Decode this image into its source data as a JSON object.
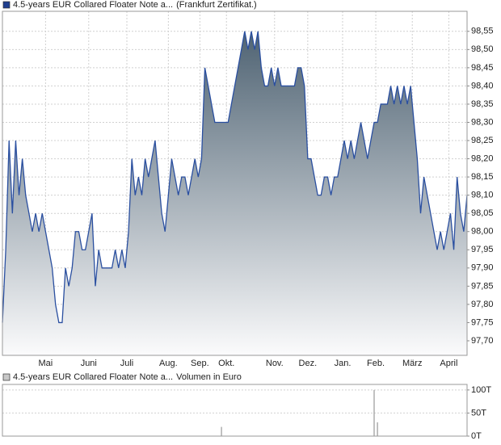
{
  "chart_data": [
    {
      "type": "area",
      "series": [
        {
          "name": "4.5-years EUR Collared Floater Note a...",
          "note": "(Frankfurt Zertifikat.)",
          "color": "#2a4fa0",
          "values": [
            97.75,
            97.95,
            98.25,
            98.05,
            98.25,
            98.1,
            98.2,
            98.1,
            98.05,
            98.0,
            98.05,
            98.0,
            98.05,
            98.0,
            97.95,
            97.9,
            97.8,
            97.75,
            97.75,
            97.9,
            97.85,
            97.9,
            98.0,
            98.0,
            97.95,
            97.95,
            98.0,
            98.05,
            97.85,
            97.95,
            97.9,
            97.9,
            97.9,
            97.9,
            97.95,
            97.9,
            97.95,
            97.9,
            98.0,
            98.2,
            98.1,
            98.15,
            98.1,
            98.2,
            98.15,
            98.2,
            98.25,
            98.15,
            98.05,
            98.0,
            98.1,
            98.2,
            98.15,
            98.1,
            98.15,
            98.15,
            98.1,
            98.15,
            98.2,
            98.15,
            98.2,
            98.45,
            98.4,
            98.35,
            98.3,
            98.3,
            98.3,
            98.3,
            98.3,
            98.35,
            98.4,
            98.45,
            98.5,
            98.55,
            98.5,
            98.55,
            98.5,
            98.55,
            98.45,
            98.4,
            98.4,
            98.45,
            98.4,
            98.45,
            98.4,
            98.4,
            98.4,
            98.4,
            98.4,
            98.45,
            98.45,
            98.4,
            98.2,
            98.2,
            98.15,
            98.1,
            98.1,
            98.15,
            98.15,
            98.1,
            98.15,
            98.15,
            98.2,
            98.25,
            98.2,
            98.25,
            98.2,
            98.25,
            98.3,
            98.25,
            98.2,
            98.25,
            98.3,
            98.3,
            98.35,
            98.35,
            98.35,
            98.4,
            98.35,
            98.4,
            98.35,
            98.4,
            98.35,
            98.4,
            98.3,
            98.2,
            98.05,
            98.15,
            98.1,
            98.05,
            98.0,
            97.95,
            98.0,
            97.95,
            98.0,
            98.05,
            97.95,
            98.15,
            98.05,
            98.0,
            98.1
          ]
        }
      ],
      "xlim": [
        0,
        140
      ],
      "xticks": [
        {
          "value": 13,
          "label": "Mai"
        },
        {
          "value": 26,
          "label": "Juni"
        },
        {
          "value": 37.5,
          "label": "Juli"
        },
        {
          "value": 50,
          "label": "Aug."
        },
        {
          "value": 59.5,
          "label": "Sep."
        },
        {
          "value": 67.5,
          "label": "Okt."
        },
        {
          "value": 82,
          "label": "Nov."
        },
        {
          "value": 92,
          "label": "Dez."
        },
        {
          "value": 102.5,
          "label": "Jan."
        },
        {
          "value": 112.5,
          "label": "Feb."
        },
        {
          "value": 123.5,
          "label": "März"
        },
        {
          "value": 134.5,
          "label": "April"
        }
      ],
      "ylim": [
        97.66,
        98.605
      ],
      "yticks": [
        {
          "value": 97.7,
          "label": "97,70"
        },
        {
          "value": 97.75,
          "label": "97,75"
        },
        {
          "value": 97.8,
          "label": "97,80"
        },
        {
          "value": 97.85,
          "label": "97,85"
        },
        {
          "value": 97.9,
          "label": "97,90"
        },
        {
          "value": 97.95,
          "label": "97,95"
        },
        {
          "value": 98.0,
          "label": "98,00"
        },
        {
          "value": 98.05,
          "label": "98,05"
        },
        {
          "value": 98.1,
          "label": "98,10"
        },
        {
          "value": 98.15,
          "label": "98,15"
        },
        {
          "value": 98.2,
          "label": "98,20"
        },
        {
          "value": 98.25,
          "label": "98,25"
        },
        {
          "value": 98.3,
          "label": "98,30"
        },
        {
          "value": 98.35,
          "label": "98,35"
        },
        {
          "value": 98.4,
          "label": "98,40"
        },
        {
          "value": 98.45,
          "label": "98,45"
        },
        {
          "value": 98.5,
          "label": "98,50"
        },
        {
          "value": 98.55,
          "label": "98,55"
        }
      ],
      "grid": true
    },
    {
      "type": "bar",
      "series": [
        {
          "name": "4.5-years EUR Collared Floater Note a...",
          "note": "Volumen in Euro",
          "color": "#999999",
          "x": [
            66,
            112,
            113
          ],
          "values": [
            20000,
            100000,
            30000
          ]
        }
      ],
      "xlim": [
        0,
        140
      ],
      "ylim": [
        0,
        112000
      ],
      "yticks": [
        {
          "value": 0,
          "label": "0T"
        },
        {
          "value": 50000,
          "label": "50T"
        },
        {
          "value": 100000,
          "label": "100T"
        }
      ],
      "grid": true
    }
  ]
}
